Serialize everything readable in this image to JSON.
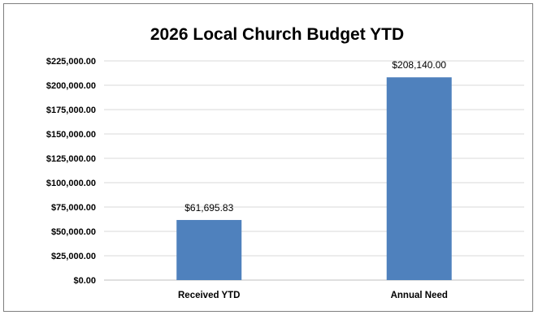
{
  "chart_data": {
    "type": "bar",
    "title": "2026 Local Church Budget YTD",
    "categories": [
      "Received YTD",
      "Annual Need"
    ],
    "values": [
      61695.83,
      208140.0
    ],
    "value_labels": [
      "$61,695.83",
      "$208,140.00"
    ],
    "xlabel": "",
    "ylabel": "",
    "ylim": [
      0,
      225000
    ],
    "yticks": [
      0,
      25000,
      50000,
      75000,
      100000,
      125000,
      150000,
      175000,
      200000,
      225000
    ],
    "ytick_labels": [
      "$0.00",
      "$25,000.00",
      "$50,000.00",
      "$75,000.00",
      "$100,000.00",
      "$125,000.00",
      "$150,000.00",
      "$175,000.00",
      "$200,000.00",
      "$225,000.00"
    ],
    "grid": true,
    "legend": "none",
    "bar_color": "#4f81bd"
  }
}
